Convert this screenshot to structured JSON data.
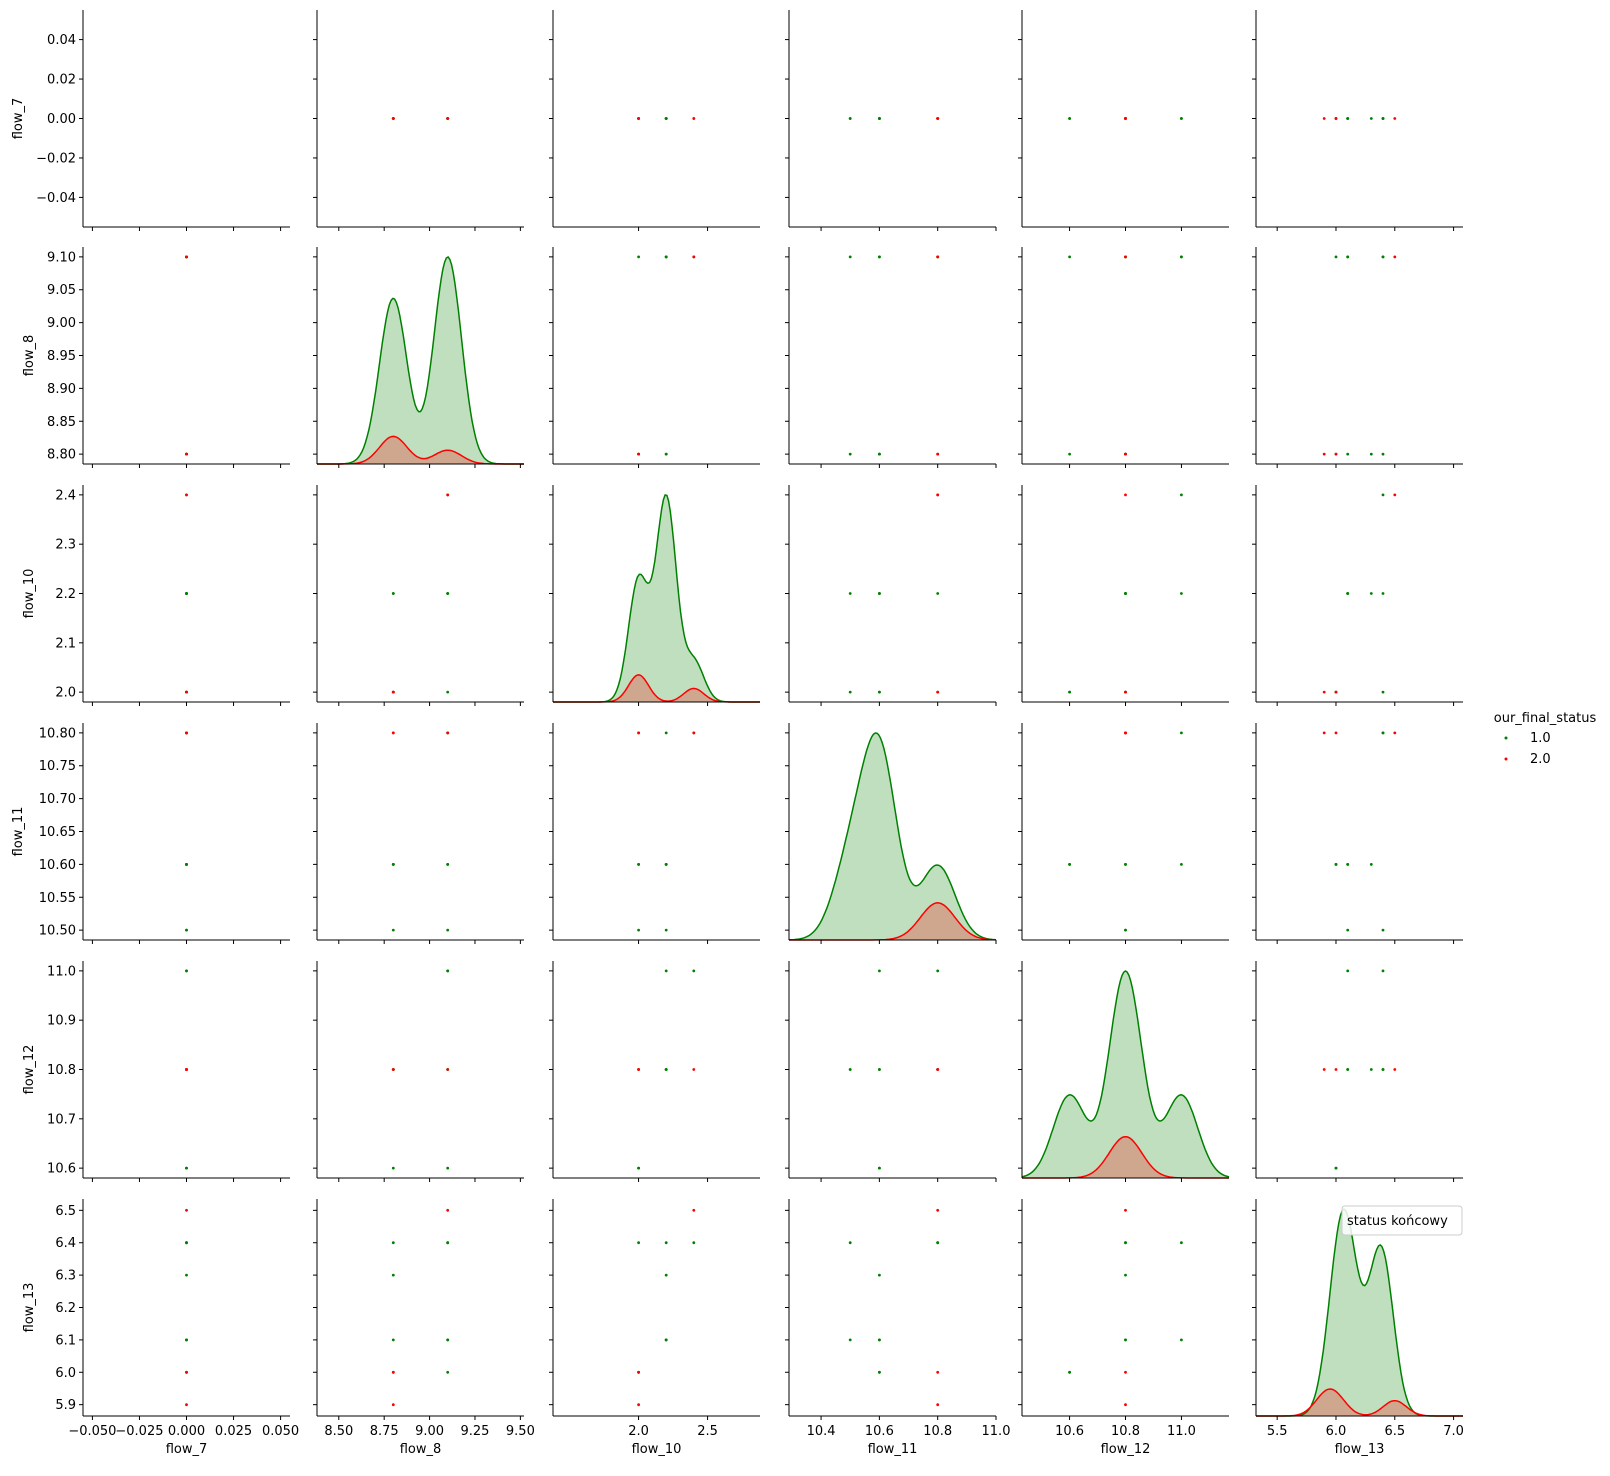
{
  "chart_data": {
    "type": "pairplot",
    "variables": [
      "flow_7",
      "flow_8",
      "flow_10",
      "flow_11",
      "flow_12",
      "flow_13"
    ],
    "legend": {
      "title": "our_final_status",
      "entries": [
        {
          "label": "1.0",
          "color": "#008000"
        },
        {
          "label": "2.0",
          "color": "#ff0000"
        }
      ],
      "placement": "right-outside"
    },
    "inset_legend": {
      "label": "status końcowy",
      "panel": "flow_13 diagonal"
    },
    "axes": {
      "flow_7": {
        "lim": [
          -0.055,
          0.055
        ],
        "ticks": [
          -0.05,
          -0.025,
          0,
          0.025,
          0.05
        ],
        "xlabels": [
          "−0.050",
          "−0.025",
          "0.000",
          "0.025",
          "0.050"
        ],
        "ylim": [
          -0.055,
          0.055
        ],
        "yticks": [
          -0.04,
          -0.02,
          0,
          0.02,
          0.04
        ],
        "ylabels": [
          "−0.04",
          "−0.02",
          "0.00",
          "0.02",
          "0.04"
        ]
      },
      "flow_8": {
        "lim": [
          8.38,
          9.52
        ],
        "ticks": [
          8.5,
          8.75,
          9.0,
          9.25,
          9.5
        ],
        "xlabels": [
          "8.50",
          "8.75",
          "9.00",
          "9.25",
          "9.50"
        ],
        "ylim": [
          8.785,
          9.115
        ],
        "yticks": [
          8.8,
          8.85,
          8.9,
          8.95,
          9.0,
          9.05,
          9.1
        ],
        "ylabels": [
          "8.80",
          "8.85",
          "8.90",
          "8.95",
          "9.00",
          "9.05",
          "9.10"
        ]
      },
      "flow_10": {
        "lim": [
          1.38,
          2.88
        ],
        "ticks": [
          2.0,
          2.5
        ],
        "xlabels": [
          "2.0",
          "2.5"
        ],
        "ylim": [
          1.98,
          2.42
        ],
        "yticks": [
          2.0,
          2.1,
          2.2,
          2.3,
          2.4
        ],
        "ylabels": [
          "2.0",
          "2.1",
          "2.2",
          "2.3",
          "2.4"
        ]
      },
      "flow_11": {
        "lim": [
          10.29,
          11.0
        ],
        "ticks": [
          10.4,
          10.6,
          10.8,
          11.0
        ],
        "xlabels": [
          "10.4",
          "10.6",
          "10.8",
          "11.0"
        ],
        "ylim": [
          10.485,
          10.815
        ],
        "yticks": [
          10.5,
          10.55,
          10.6,
          10.65,
          10.7,
          10.75,
          10.8
        ],
        "ylabels": [
          "10.50",
          "10.55",
          "10.60",
          "10.65",
          "10.70",
          "10.75",
          "10.80"
        ]
      },
      "flow_12": {
        "lim": [
          10.43,
          11.17
        ],
        "ticks": [
          10.6,
          10.8,
          11.0
        ],
        "xlabels": [
          "10.6",
          "10.8",
          "11.0"
        ],
        "ylim": [
          10.58,
          11.02
        ],
        "yticks": [
          10.6,
          10.7,
          10.8,
          10.9,
          11.0
        ],
        "ylabels": [
          "10.6",
          "10.7",
          "10.8",
          "10.9",
          "11.0"
        ]
      },
      "flow_13": {
        "lim": [
          5.32,
          7.08
        ],
        "ticks": [
          5.5,
          6.0,
          6.5,
          7.0
        ],
        "xlabels": [
          "5.5",
          "6.0",
          "6.5",
          "7.0"
        ],
        "ylim": [
          5.865,
          6.535
        ],
        "yticks": [
          5.9,
          6.0,
          6.1,
          6.2,
          6.3,
          6.4,
          6.5
        ],
        "ylabels": [
          "5.9",
          "6.0",
          "6.1",
          "6.2",
          "6.3",
          "6.4",
          "6.5"
        ]
      }
    },
    "points": [
      {
        "flow_7": 0,
        "flow_8": 9.1,
        "flow_10": 2.4,
        "flow_11": 10.8,
        "flow_12": 11.0,
        "flow_13": 6.4,
        "status": 1
      },
      {
        "flow_7": 0,
        "flow_8": 9.1,
        "flow_10": 2.2,
        "flow_11": 10.5,
        "flow_12": 10.8,
        "flow_13": 6.1,
        "status": 1
      },
      {
        "flow_7": 0,
        "flow_8": 9.1,
        "flow_10": 2.2,
        "flow_11": 10.6,
        "flow_12": 11.0,
        "flow_13": 6.1,
        "status": 1
      },
      {
        "flow_7": 0,
        "flow_8": 9.1,
        "flow_10": 2.0,
        "flow_11": 10.6,
        "flow_12": 10.6,
        "flow_13": 6.0,
        "status": 1
      },
      {
        "flow_7": 0,
        "flow_8": 9.1,
        "flow_10": 2.2,
        "flow_11": 10.8,
        "flow_12": 10.8,
        "flow_13": 6.4,
        "status": 1
      },
      {
        "flow_7": 0,
        "flow_8": 8.8,
        "flow_10": 2.0,
        "flow_11": 10.6,
        "flow_12": 10.6,
        "flow_13": 6.0,
        "status": 1
      },
      {
        "flow_7": 0,
        "flow_8": 8.8,
        "flow_10": 2.2,
        "flow_11": 10.6,
        "flow_12": 10.8,
        "flow_13": 6.3,
        "status": 1
      },
      {
        "flow_7": 0,
        "flow_8": 8.8,
        "flow_10": 2.0,
        "flow_11": 10.5,
        "flow_12": 10.8,
        "flow_13": 6.4,
        "status": 1
      },
      {
        "flow_7": 0,
        "flow_8": 8.8,
        "flow_10": 2.2,
        "flow_11": 10.6,
        "flow_12": 10.8,
        "flow_13": 6.1,
        "status": 1
      },
      {
        "flow_7": 0,
        "flow_8": 8.8,
        "flow_10": 2.0,
        "flow_11": 10.8,
        "flow_12": 10.8,
        "flow_13": 6.0,
        "status": 2
      },
      {
        "flow_7": 0,
        "flow_8": 9.1,
        "flow_10": 2.4,
        "flow_11": 10.8,
        "flow_12": 10.8,
        "flow_13": 6.5,
        "status": 2
      },
      {
        "flow_7": 0,
        "flow_8": 8.8,
        "flow_10": 2.0,
        "flow_11": 10.8,
        "flow_12": 10.8,
        "flow_13": 5.9,
        "status": 2
      }
    ]
  }
}
